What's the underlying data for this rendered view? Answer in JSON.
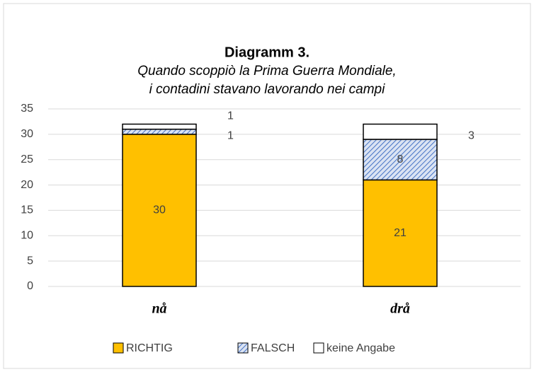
{
  "chart_data": {
    "type": "stacked_bar",
    "title": "Diagramm 3.",
    "subtitle": [
      "Quando scoppiò la Prima Guerra Mondiale,",
      "i contadini stavano lavorando nei campi"
    ],
    "categories": [
      "nå",
      "drå"
    ],
    "series": [
      {
        "name": "RICHTIG",
        "color": "#ffc000",
        "values": [
          30,
          21
        ]
      },
      {
        "name": "FALSCH",
        "color": "#4472c4",
        "pattern": "hatch",
        "values": [
          1,
          8
        ]
      },
      {
        "name": "keine Angabe",
        "color": "#ffffff",
        "values": [
          1,
          3
        ]
      }
    ],
    "ylim": [
      0,
      35
    ],
    "yticks": [
      0,
      5,
      10,
      15,
      20,
      25,
      30,
      35
    ],
    "grid": true,
    "legend": "bottom"
  }
}
